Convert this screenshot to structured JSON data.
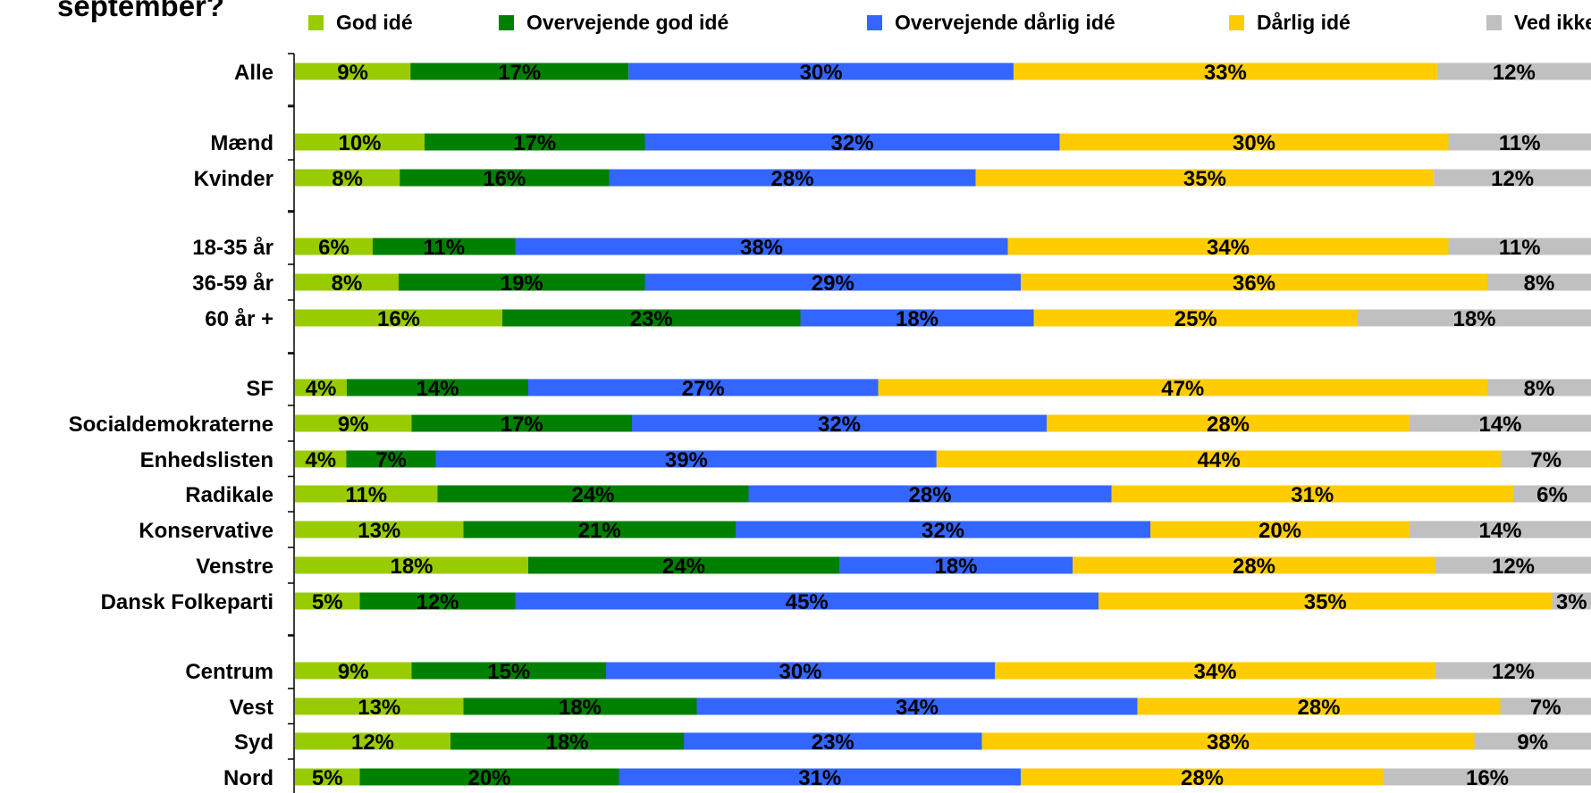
{
  "title": "september?",
  "chart_data": {
    "type": "bar",
    "orientation": "horizontal",
    "stacked": true,
    "title": "september?",
    "legend": "top",
    "series": [
      {
        "name": "God idé",
        "color": "#99CC00",
        "values": [
          9,
          10,
          8,
          6,
          8,
          16,
          4,
          9,
          4,
          11,
          13,
          18,
          5,
          9,
          13,
          12,
          5
        ]
      },
      {
        "name": "Overvejende god idé",
        "color": "#008000",
        "values": [
          17,
          17,
          16,
          11,
          19,
          23,
          14,
          17,
          7,
          24,
          21,
          24,
          12,
          15,
          18,
          18,
          20
        ]
      },
      {
        "name": "Overvejende dårlig idé",
        "color": "#3366FF",
        "values": [
          30,
          32,
          28,
          38,
          29,
          18,
          27,
          32,
          39,
          28,
          32,
          18,
          45,
          30,
          34,
          23,
          31
        ]
      },
      {
        "name": "Dårlig idé",
        "color": "#FFCC00",
        "values": [
          33,
          30,
          35,
          34,
          36,
          25,
          47,
          28,
          44,
          31,
          20,
          28,
          35,
          34,
          28,
          38,
          28
        ]
      },
      {
        "name": "Ved ikke",
        "color": "#C0C0C0",
        "values": [
          12,
          11,
          12,
          11,
          8,
          18,
          8,
          14,
          7,
          6,
          14,
          12,
          3,
          12,
          7,
          9,
          16
        ]
      }
    ],
    "categories": [
      "Alle",
      "Mænd",
      "Kvinder",
      "18-35 år",
      "36-59 år",
      "60 år +",
      "SF",
      "Socialdemokraterne",
      "Enhedslisten",
      "Radikale",
      "Konservative",
      "Venstre",
      "Dansk Folkeparti",
      "Centrum",
      "Vest",
      "Syd",
      "Nord"
    ],
    "value_suffix": "%",
    "grid": false
  }
}
